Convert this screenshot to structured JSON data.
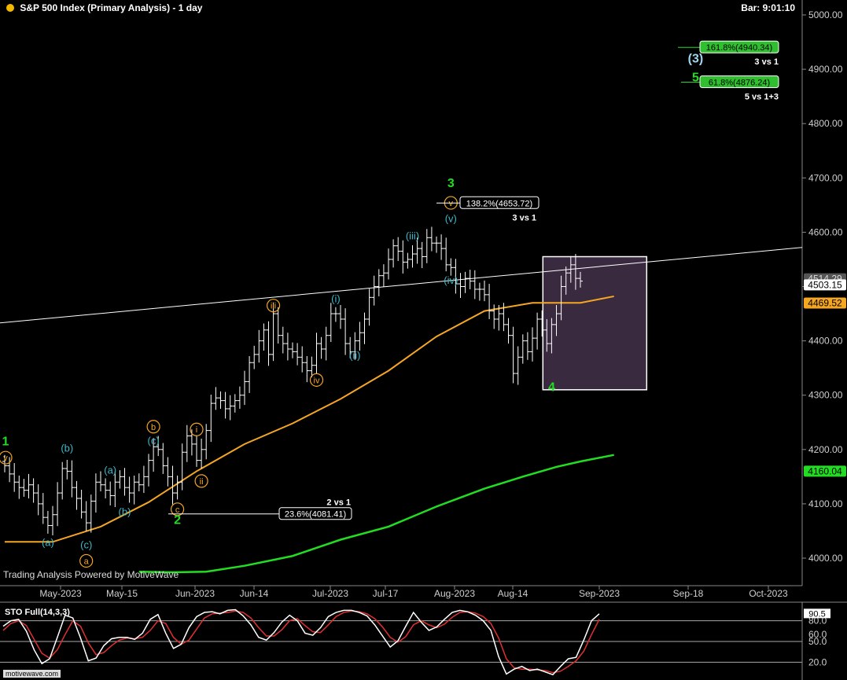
{
  "header": {
    "title": "S&P 500 Index (Primary Analysis) - 1 day",
    "bar_time": "Bar: 9:01:10",
    "title_dot_color": "#f5b800"
  },
  "watermark": "Trading Analysis Powered by MotiveWave",
  "footer_logo": "motivewave.com",
  "colors": {
    "background": "#000000",
    "price_bars": "#ffffff",
    "ma_fast": "#f5a623",
    "ma_slow": "#22dd22",
    "wave_green": "#22dd22",
    "wave_cyan": "#3fb8c8",
    "wave_orange": "#f5a623",
    "wave_blue": "#9fd4ef",
    "highlight_box": "#3a2a3f",
    "stoch_k": "#ffffff",
    "stoch_d": "#e03030"
  },
  "chart_data": [
    {
      "type": "bar",
      "title": "S&P 500 Index (Primary Analysis) - 1 day",
      "x_tick_labels": [
        "May-2023",
        "May-15",
        "Jun-2023",
        "Jun-14",
        "Jul-2023",
        "Jul-17",
        "Aug-2023",
        "Aug-14",
        "Sep-2023",
        "Sep-18",
        "Oct-2023"
      ],
      "y_tick_labels": [
        "4000.00",
        "4100.00",
        "4200.00",
        "4300.00",
        "4400.00",
        "4500.00",
        "4600.00",
        "4700.00",
        "4800.00",
        "4900.00",
        "5000.00"
      ],
      "ylim": [
        3940,
        5020
      ],
      "grid": false,
      "price_axis_labels": [
        {
          "text": "4514.29",
          "value": 4514.29,
          "color": "#555555"
        },
        {
          "text": "4503.15",
          "value": 4503.15,
          "color": "#ffffff"
        },
        {
          "text": "4469.52",
          "value": 4469.52,
          "color": "#f5a623"
        },
        {
          "text": "4160.04",
          "value": 4160.04,
          "color": "#22dd22"
        }
      ],
      "ohlc_close": [
        4170,
        4155,
        4140,
        4130,
        4125,
        4135,
        4120,
        4100,
        4075,
        4060,
        4080,
        4120,
        4165,
        4160,
        4130,
        4110,
        4085,
        4065,
        4105,
        4140,
        4135,
        4125,
        4115,
        4140,
        4150,
        4130,
        4120,
        4140,
        4135,
        4150,
        4180,
        4205,
        4200,
        4170,
        4150,
        4120,
        4140,
        4195,
        4225,
        4210,
        4180,
        4200,
        4235,
        4285,
        4295,
        4290,
        4275,
        4280,
        4290,
        4300,
        4325,
        4360,
        4375,
        4400,
        4420,
        4375,
        4450,
        4410,
        4395,
        4385,
        4380,
        4370,
        4360,
        4345,
        4355,
        4395,
        4385,
        4410,
        4450,
        4450,
        4440,
        4395,
        4380,
        4400,
        4415,
        4440,
        4480,
        4500,
        4520,
        4525,
        4550,
        4575,
        4565,
        4545,
        4550,
        4560,
        4570,
        4555,
        4590,
        4580,
        4580,
        4570,
        4540,
        4535,
        4505,
        4500,
        4515,
        4510,
        4495,
        4495,
        4485,
        4455,
        4440,
        4450,
        4430,
        4410,
        4340,
        4370,
        4400,
        4380,
        4405,
        4440,
        4420,
        4395,
        4430,
        4450,
        4500,
        4525,
        4540,
        4515,
        4510
      ],
      "series": [
        {
          "name": "",
          "kind": "moving_average",
          "color": "#f5a623",
          "x": [
            0,
            10,
            20,
            30,
            40,
            50,
            60,
            70,
            80,
            90,
            100,
            110,
            120,
            127
          ],
          "values": [
            4030,
            4030,
            4058,
            4103,
            4160,
            4210,
            4248,
            4293,
            4345,
            4408,
            4455,
            4470,
            4470,
            4482
          ]
        },
        {
          "name": "",
          "kind": "moving_average",
          "color": "#22dd22",
          "x": [
            28,
            35,
            42,
            50,
            60,
            70,
            80,
            90,
            100,
            108,
            115,
            120,
            127
          ],
          "values": [
            3975,
            3974,
            3975,
            3986,
            4004,
            4034,
            4058,
            4095,
            4128,
            4150,
            4168,
            4178,
            4190
          ]
        }
      ],
      "trend_line": {
        "from": {
          "x": 0,
          "y": 4433
        },
        "to": {
          "x": 172,
          "y": 4572
        },
        "color": "#ffffff"
      },
      "wave_labels": [
        {
          "text": "1",
          "x": 0,
          "y": 4215,
          "color": "#22dd22",
          "style": "plain"
        },
        {
          "text": "v",
          "x": 0,
          "y": 4185,
          "color": "#f5a623",
          "style": "circle"
        },
        {
          "text": "(a)",
          "x": 9,
          "y": 4030,
          "color": "#3fb8c8",
          "style": "plain"
        },
        {
          "text": "(b)",
          "x": 13,
          "y": 4203,
          "color": "#3fb8c8",
          "style": "plain"
        },
        {
          "text": "(c)",
          "x": 17,
          "y": 4025,
          "color": "#3fb8c8",
          "style": "plain"
        },
        {
          "text": "a",
          "x": 17,
          "y": 3995,
          "color": "#f5a623",
          "style": "circle"
        },
        {
          "text": "(a)",
          "x": 22,
          "y": 4163,
          "color": "#3fb8c8",
          "style": "plain"
        },
        {
          "text": "(b)",
          "x": 25,
          "y": 4086,
          "color": "#3fb8c8",
          "style": "plain"
        },
        {
          "text": "b",
          "x": 31,
          "y": 4242,
          "color": "#f5a623",
          "style": "circle"
        },
        {
          "text": "(c)",
          "x": 31,
          "y": 4217,
          "color": "#3fb8c8",
          "style": "plain"
        },
        {
          "text": "c",
          "x": 36,
          "y": 4090,
          "color": "#f5a623",
          "style": "circle"
        },
        {
          "text": "2",
          "x": 36,
          "y": 4070,
          "color": "#22dd22",
          "style": "plain"
        },
        {
          "text": "i",
          "x": 40,
          "y": 4237,
          "color": "#f5a623",
          "style": "circle"
        },
        {
          "text": "ii",
          "x": 41,
          "y": 4142,
          "color": "#f5a623",
          "style": "circle"
        },
        {
          "text": "iii",
          "x": 56,
          "y": 4465,
          "color": "#f5a623",
          "style": "circle"
        },
        {
          "text": "(i)",
          "x": 69,
          "y": 4478,
          "color": "#3fb8c8",
          "style": "plain"
        },
        {
          "text": "(ii)",
          "x": 73,
          "y": 4374,
          "color": "#3fb8c8",
          "style": "plain"
        },
        {
          "text": "iv",
          "x": 65,
          "y": 4328,
          "color": "#f5a623",
          "style": "circle"
        },
        {
          "text": "(iii)",
          "x": 85,
          "y": 4594,
          "color": "#3fb8c8",
          "style": "plain"
        },
        {
          "text": "(iv)",
          "x": 93,
          "y": 4512,
          "color": "#3fb8c8",
          "style": "plain"
        },
        {
          "text": "(v)",
          "x": 93,
          "y": 4626,
          "color": "#3fb8c8",
          "style": "plain"
        },
        {
          "text": "v",
          "x": 93,
          "y": 4654,
          "color": "#f5a623",
          "style": "circle"
        },
        {
          "text": "3",
          "x": 93,
          "y": 4690,
          "color": "#22dd22",
          "style": "plain"
        },
        {
          "text": "4",
          "x": 114,
          "y": 4315,
          "color": "#22dd22",
          "style": "plain"
        },
        {
          "text": "(3)",
          "x": 144,
          "y": 4920,
          "color": "#9fd4ef",
          "style": "plain"
        },
        {
          "text": "5",
          "x": 144,
          "y": 4885,
          "color": "#22dd22",
          "style": "plain"
        }
      ],
      "fib_levels": [
        {
          "label": "138.2%(4653.72)",
          "note": "3 vs 1",
          "value": 4653.72,
          "box_style": "outline"
        },
        {
          "label": "23.6%(4081.41)",
          "note": "2 vs 1",
          "value": 4081.41,
          "box_style": "outline"
        },
        {
          "label": "161.8%(4940.34)",
          "note": "3 vs 1",
          "value": 4940.34,
          "box_style": "green"
        },
        {
          "label": "61.8%(4876.24)",
          "note": "5 vs 1+3",
          "value": 4876.24,
          "box_style": "green"
        }
      ],
      "highlight_box": {
        "x_from": 113,
        "x_to": 133,
        "y_from": 4310,
        "y_to": 4555
      }
    },
    {
      "type": "line",
      "title": "STO Full(14,3,3)",
      "ylim": [
        0,
        100
      ],
      "y_tick_labels": [
        "20.0",
        "50.0",
        "60.0",
        "80.0"
      ],
      "reference_lines": [
        20,
        50,
        80
      ],
      "price_axis_labels": [
        {
          "text": "90.5",
          "value": 90.5
        }
      ],
      "series": [
        {
          "name": "",
          "color": "#ffffff",
          "values": [
            72,
            80,
            82,
            65,
            38,
            18,
            25,
            56,
            88,
            84,
            55,
            22,
            26,
            44,
            54,
            56,
            56,
            53,
            62,
            82,
            89,
            62,
            40,
            46,
            70,
            86,
            92,
            93,
            90,
            95,
            96,
            87,
            74,
            56,
            52,
            63,
            78,
            88,
            80,
            62,
            59,
            70,
            86,
            92,
            95,
            95,
            92,
            87,
            74,
            58,
            42,
            51,
            72,
            92,
            78,
            66,
            71,
            82,
            92,
            95,
            93,
            88,
            80,
            66,
            28,
            3,
            10,
            14,
            8,
            10,
            6,
            2,
            14,
            25,
            27,
            52,
            80,
            90
          ]
        },
        {
          "name": "",
          "color": "#e03030",
          "values": [
            66,
            76,
            80,
            73,
            53,
            33,
            26,
            38,
            60,
            80,
            72,
            48,
            31,
            34,
            44,
            52,
            55,
            54,
            56,
            66,
            80,
            76,
            56,
            46,
            52,
            68,
            84,
            90,
            91,
            92,
            94,
            92,
            84,
            70,
            58,
            58,
            67,
            80,
            83,
            73,
            64,
            63,
            74,
            86,
            92,
            94,
            93,
            90,
            83,
            71,
            56,
            49,
            57,
            74,
            80,
            74,
            70,
            75,
            85,
            92,
            93,
            91,
            86,
            76,
            55,
            25,
            12,
            10,
            10,
            9,
            8,
            5,
            7,
            14,
            22,
            36,
            60,
            82
          ]
        }
      ]
    }
  ]
}
